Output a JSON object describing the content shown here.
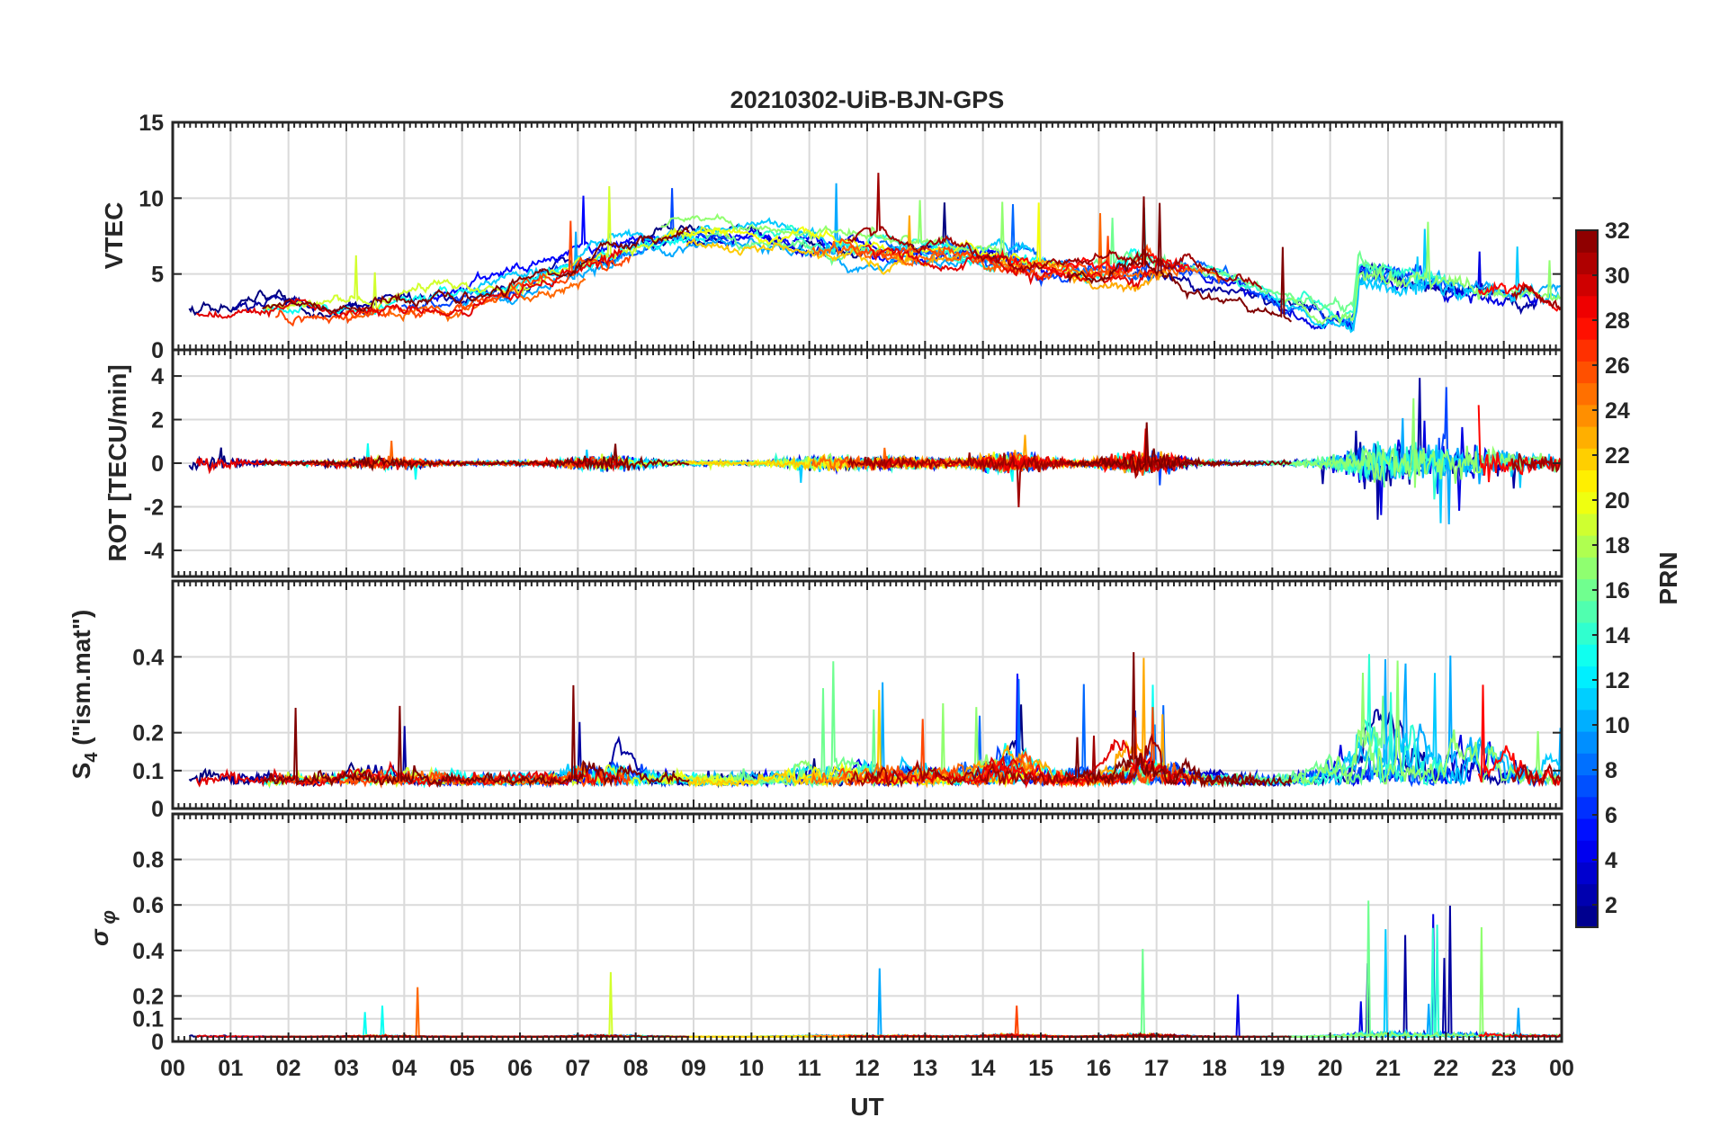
{
  "chart_data": {
    "type": "line",
    "title": "20210302-UiB-BJN-GPS",
    "xlabel": "UT",
    "x_tick_labels": [
      "00",
      "01",
      "02",
      "03",
      "04",
      "05",
      "06",
      "07",
      "08",
      "09",
      "10",
      "11",
      "12",
      "13",
      "14",
      "15",
      "16",
      "17",
      "18",
      "19",
      "20",
      "21",
      "22",
      "23",
      "00"
    ],
    "xlim": [
      0,
      24
    ],
    "grid": true,
    "colorbar": {
      "label": "PRN",
      "range": [
        1,
        32
      ],
      "tick_labels": [
        "2",
        "4",
        "6",
        "8",
        "10",
        "12",
        "14",
        "16",
        "18",
        "20",
        "22",
        "24",
        "26",
        "28",
        "30",
        "32"
      ],
      "tick_values": [
        2,
        4,
        6,
        8,
        10,
        12,
        14,
        16,
        18,
        20,
        22,
        24,
        26,
        28,
        30,
        32
      ],
      "colormap": "jet"
    },
    "panels": [
      {
        "id": "vtec",
        "ylabel": "VTEC",
        "ylim": [
          0,
          15
        ],
        "y_tick_values": [
          0,
          5,
          10,
          15
        ],
        "y_tick_labels": [
          "0",
          "5",
          "10",
          "15"
        ],
        "description_profile": [
          [
            0,
            2.5
          ],
          [
            1,
            2.6
          ],
          [
            2,
            2.8
          ],
          [
            3,
            2.7
          ],
          [
            4,
            2.9
          ],
          [
            5,
            3.3
          ],
          [
            6,
            4.3
          ],
          [
            7,
            5.6
          ],
          [
            8,
            6.8
          ],
          [
            9,
            7.6
          ],
          [
            10,
            7.3
          ],
          [
            11,
            7.0
          ],
          [
            12,
            6.7
          ],
          [
            13,
            6.3
          ],
          [
            14,
            6.0
          ],
          [
            15,
            5.3
          ],
          [
            16,
            5.1
          ],
          [
            17,
            5.4
          ],
          [
            18,
            4.6
          ],
          [
            19,
            3.4
          ],
          [
            20,
            2.2
          ],
          [
            20.4,
            2.0
          ],
          [
            20.5,
            5.2
          ],
          [
            21,
            4.7
          ],
          [
            22,
            4.3
          ],
          [
            23,
            4.0
          ],
          [
            24,
            3.2
          ]
        ]
      },
      {
        "id": "rot",
        "ylabel": "ROT [TECU/min]",
        "ylim": [
          -5.2,
          5.2
        ],
        "y_tick_values": [
          -4,
          -2,
          0,
          2,
          4
        ],
        "y_tick_labels": [
          "-4",
          "-2",
          "0",
          "2",
          "4"
        ]
      },
      {
        "id": "s4",
        "ylabel": "S4 (\"ism.mat\")",
        "ylabel_main": "S",
        "ylabel_sub": "4",
        "ylabel_rest": " (\"ism.mat\")",
        "ylim": [
          0,
          0.6
        ],
        "y_tick_values": [
          0,
          0.1,
          0.2,
          0.4
        ],
        "y_tick_labels": [
          "0",
          "0.1",
          "0.2",
          "0.4"
        ]
      },
      {
        "id": "sigma",
        "ylabel": "σφ",
        "ylabel_main": "σ",
        "ylabel_sub": "φ",
        "ylim": [
          0,
          1
        ],
        "y_tick_values": [
          0,
          0.1,
          0.2,
          0.4,
          0.6,
          0.8
        ],
        "y_tick_labels": [
          "0",
          "0.1",
          "0.2",
          "0.4",
          "0.6",
          "0.8"
        ]
      }
    ]
  }
}
